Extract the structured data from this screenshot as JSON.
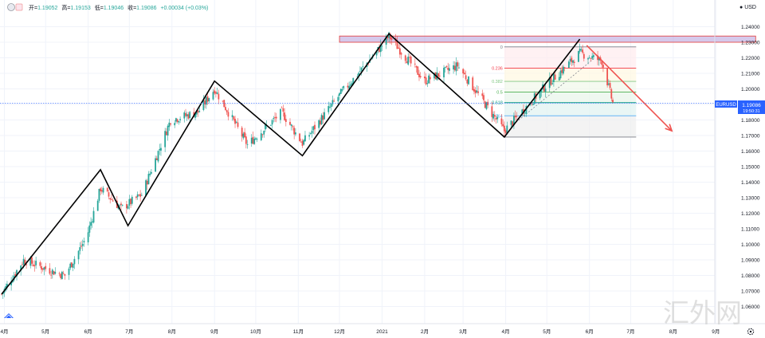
{
  "ohlc_bar": {
    "open_label": "开=",
    "open": "1.19052",
    "high_label": "高=",
    "high": "1.19153",
    "low_label": "低=",
    "low": "1.19046",
    "close_label": "收=",
    "close": "1.19086",
    "change": "+0.00034 (+0.03%)"
  },
  "axis": {
    "currency": "USD",
    "time_labels": [
      "4月",
      "5月",
      "6月",
      "7月",
      "8月",
      "9月",
      "10月",
      "11月",
      "12月",
      "2021",
      "2月",
      "3月",
      "4月",
      "5月",
      "6月",
      "7月",
      "8月",
      "9月"
    ]
  },
  "price_tag": {
    "symbol": "EURUSD",
    "price": "1.19086",
    "countdown": "19:50:31"
  },
  "fibonacci": {
    "levels": [
      {
        "ratio": "0",
        "color": "#787b86"
      },
      {
        "ratio": "0.236",
        "color": "#f23645"
      },
      {
        "ratio": "0.382",
        "color": "#81c784"
      },
      {
        "ratio": "0.5",
        "color": "#4caf50"
      },
      {
        "ratio": "0.618",
        "color": "#089981"
      },
      {
        "ratio": "0.764",
        "color": "#64b5f6"
      },
      {
        "ratio": "1",
        "color": "#787b86"
      }
    ]
  },
  "watermark": "汇外网",
  "colors": {
    "up": "#26a69a",
    "down": "#ef5350",
    "zigzag": "#000000",
    "forecast_arrow": "#ef5350",
    "resistance_zone": "#b39ddb",
    "price_line": "#2962ff"
  },
  "chart_data": {
    "type": "candlestick",
    "symbol": "EURUSD",
    "ylim": [
      1.0593,
      1.2453
    ],
    "y_ticks": [
      1.24,
      1.23,
      1.22,
      1.21,
      1.2,
      1.19,
      1.18,
      1.17,
      1.16,
      1.15,
      1.14,
      1.13,
      1.12,
      1.11,
      1.1,
      1.09,
      1.08,
      1.07,
      1.06
    ],
    "current_price": 1.19086,
    "close_path": [
      [
        "2020-03-30",
        1.068
      ],
      [
        "2020-04-15",
        1.09
      ],
      [
        "2020-05-05",
        1.083
      ],
      [
        "2020-05-15",
        1.08
      ],
      [
        "2020-05-31",
        1.105
      ],
      [
        "2020-06-10",
        1.136
      ],
      [
        "2020-06-25",
        1.123
      ],
      [
        "2020-07-10",
        1.132
      ],
      [
        "2020-07-31",
        1.18
      ],
      [
        "2020-08-20",
        1.185
      ],
      [
        "2020-09-01",
        1.2
      ],
      [
        "2020-09-25",
        1.164
      ],
      [
        "2020-10-20",
        1.185
      ],
      [
        "2020-11-04",
        1.165
      ],
      [
        "2020-12-01",
        1.196
      ],
      [
        "2020-12-31",
        1.227
      ],
      [
        "2021-01-06",
        1.234
      ],
      [
        "2021-02-01",
        1.205
      ],
      [
        "2021-02-25",
        1.215
      ],
      [
        "2021-03-31",
        1.173
      ],
      [
        "2021-04-30",
        1.202
      ],
      [
        "2021-05-25",
        1.223
      ],
      [
        "2021-06-10",
        1.218
      ],
      [
        "2021-06-18",
        1.1909
      ]
    ],
    "zigzag": [
      [
        "2020-03-30",
        1.068
      ],
      [
        "2020-06-10",
        1.148
      ],
      [
        "2020-06-30",
        1.112
      ],
      [
        "2020-09-01",
        1.205
      ],
      [
        "2020-11-04",
        1.157
      ],
      [
        "2021-01-06",
        1.2355
      ],
      [
        "2021-03-31",
        1.169
      ],
      [
        "2021-05-25",
        1.232
      ]
    ],
    "forecast_arrow": [
      [
        "2021-05-30",
        1.228
      ],
      [
        "2021-07-31",
        1.173
      ]
    ],
    "resistance_zone": {
      "from": "2020-12-01",
      "to": "2021-09-30",
      "top": 1.234,
      "bottom": 1.23
    },
    "fib_retracement": {
      "high": 1.227,
      "low": 1.169,
      "from": "2021-03-31",
      "to": "2021-07-05"
    }
  }
}
